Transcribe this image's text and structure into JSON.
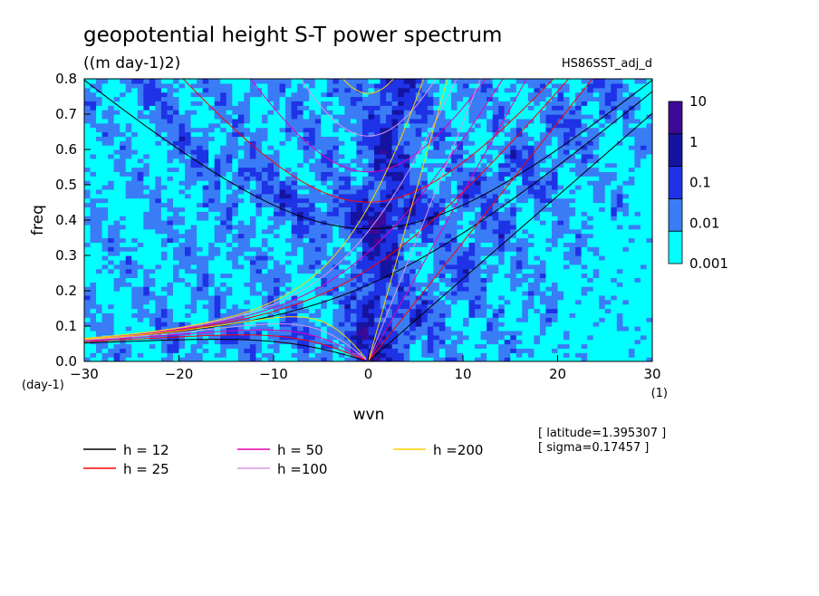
{
  "chart_data": {
    "type": "heatmap",
    "title": "geopotential height S-T power spectrum",
    "subtitle": "((m day-1)2)",
    "run_label": "HS86SST_adj_d",
    "xlabel": "wvn",
    "ylabel": "freq",
    "x_unit": "(1)",
    "y_unit": "(day-1)",
    "xlim": [
      -30,
      30
    ],
    "ylim": [
      0,
      0.8
    ],
    "x_ticks": [
      -30,
      -20,
      -10,
      0,
      10,
      20,
      30
    ],
    "y_ticks": [
      0.0,
      0.1,
      0.2,
      0.3,
      0.4,
      0.5,
      0.6,
      0.7,
      0.8
    ],
    "y_tick_labels": [
      "0.0",
      "0.1",
      "0.2",
      "0.3",
      "0.4",
      "0.5",
      "0.6",
      "0.7",
      "0.8"
    ],
    "colorbar": {
      "levels": [
        0.001,
        0.01,
        0.1,
        1,
        10
      ],
      "labels": [
        "0.001",
        "0.01",
        "0.1",
        "1",
        "10"
      ],
      "colors": [
        "#00ffff",
        "#3a7cf5",
        "#1e32e6",
        "#1414a0",
        "#3c0a96"
      ]
    },
    "dispersion_curves": [
      {
        "label": "h = 12",
        "h": 12,
        "color": "#000000"
      },
      {
        "label": "h = 25",
        "h": 25,
        "color": "#ff0000"
      },
      {
        "label": "h = 50",
        "h": 50,
        "color": "#e600b4"
      },
      {
        "label": "h =100",
        "h": 100,
        "color": "#dc96e6"
      },
      {
        "label": "h =200",
        "h": 200,
        "color": "#ffd200"
      }
    ],
    "annotations": [
      "[ latitude=1.395307 ]",
      "[ sigma=0.17457 ]"
    ]
  }
}
